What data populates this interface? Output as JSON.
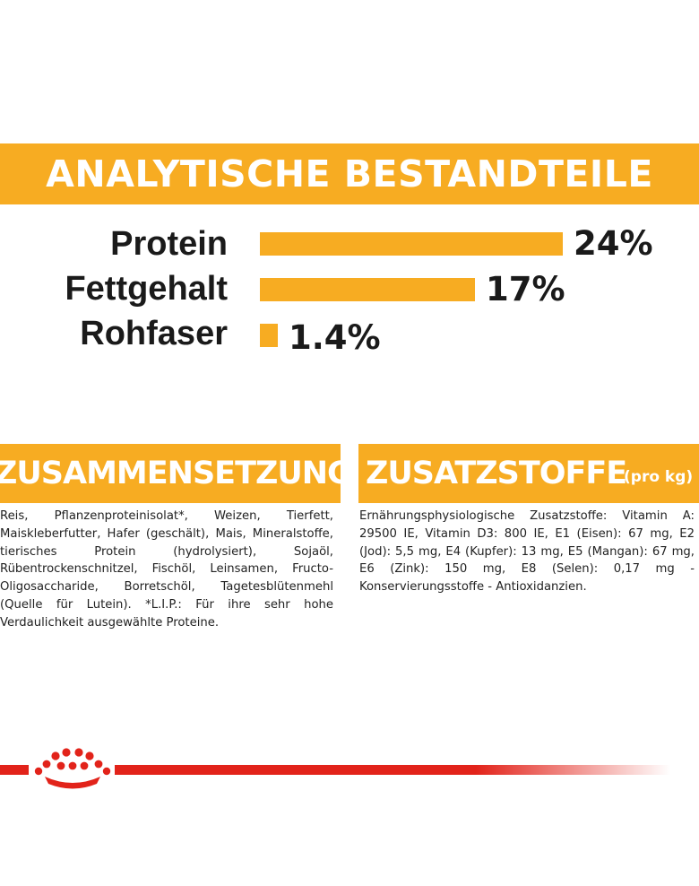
{
  "banner": {
    "title": "ANALYTISCHE BESTANDTEILE"
  },
  "nutrients": [
    {
      "label": "Protein",
      "value_text": "24%",
      "percent": 24
    },
    {
      "label": "Fettgehalt",
      "value_text": "17%",
      "percent": 17
    },
    {
      "label": "Rohfaser",
      "value_text": "1.4%",
      "percent": 1.4
    }
  ],
  "composition": {
    "title": "ZUSAMMENSETZUNG",
    "text": "Reis, Pflanzenproteinisolat*, Weizen, Tierfett, Maiskleberfutter, Hafer (geschält), Mais, Mineralstoffe, tierisches Protein (hydrolysiert), Sojaöl, Rübentrockenschnitzel, Fischöl, Leinsamen, Fructo-Oligosaccharide, Borretschöl, Tagetesblütenmehl (Quelle für Lutein). *L.I.P.: Für ihre sehr hohe Verdaulichkeit ausgewählte Proteine."
  },
  "additives": {
    "title": "ZUSATZSTOFFE",
    "unit": "(pro kg)",
    "text": "Ernährungsphysiologische Zusatzstoffe: Vitamin A: 29500 IE, Vitamin D3: 800 IE, E1 (Eisen): 67 mg, E2 (Jod): 5,5 mg, E4 (Kupfer): 13 mg, E5 (Mangan): 67 mg, E6 (Zink): 150 mg, E8 (Selen): 0,17 mg - Konservierungsstoffe - Antioxidanzien."
  },
  "colors": {
    "accent": "#f7ac22",
    "brand_red": "#e2231a",
    "text": "#1a1a1a"
  },
  "footer": {
    "logo_icon": "royal-canin-crown-icon"
  }
}
